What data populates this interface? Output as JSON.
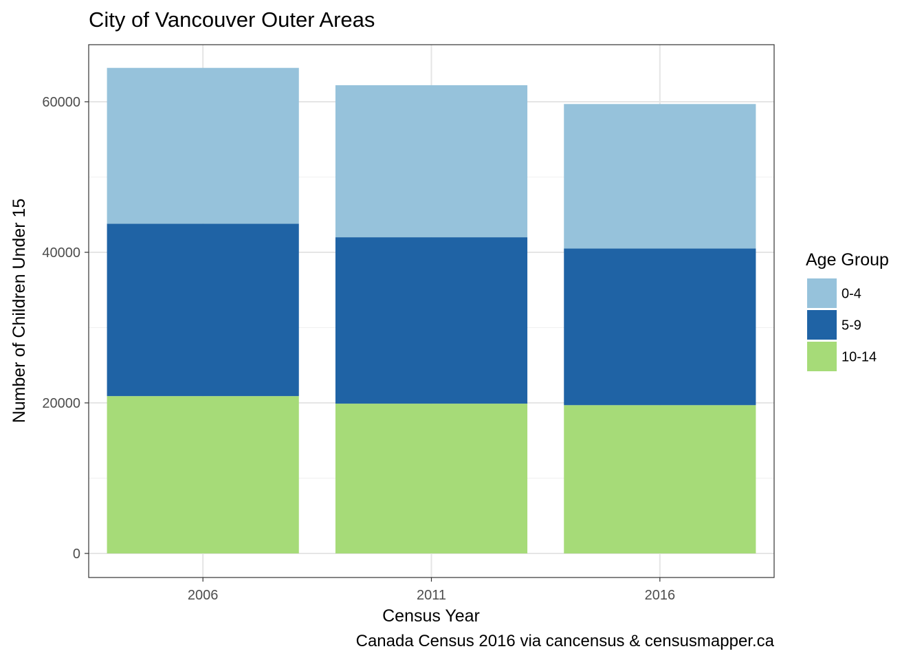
{
  "chart_data": {
    "type": "bar",
    "stacked": true,
    "title": "City of Vancouver Outer Areas",
    "xlabel": "Census Year",
    "ylabel": "Number of Children Under 15",
    "caption": "Canada Census 2016 via cancensus & censusmapper.ca",
    "categories": [
      "2006",
      "2011",
      "2016"
    ],
    "ylim": [
      0,
      67800
    ],
    "yticks": [
      0,
      20000,
      40000,
      60000
    ],
    "ytick_labels": [
      "0",
      "20000",
      "40000",
      "60000"
    ],
    "grid": true,
    "legend": {
      "title": "Age Group",
      "position": "right"
    },
    "series": [
      {
        "name": "10-14",
        "color": "#a6db78",
        "values": [
          20900,
          19900,
          19700
        ]
      },
      {
        "name": "5-9",
        "color": "#1f63a5",
        "values": [
          22900,
          22100,
          20800
        ]
      },
      {
        "name": "0-4",
        "color": "#96c2db",
        "values": [
          20700,
          20200,
          19200
        ]
      }
    ],
    "legend_order": [
      "0-4",
      "5-9",
      "10-14"
    ]
  }
}
